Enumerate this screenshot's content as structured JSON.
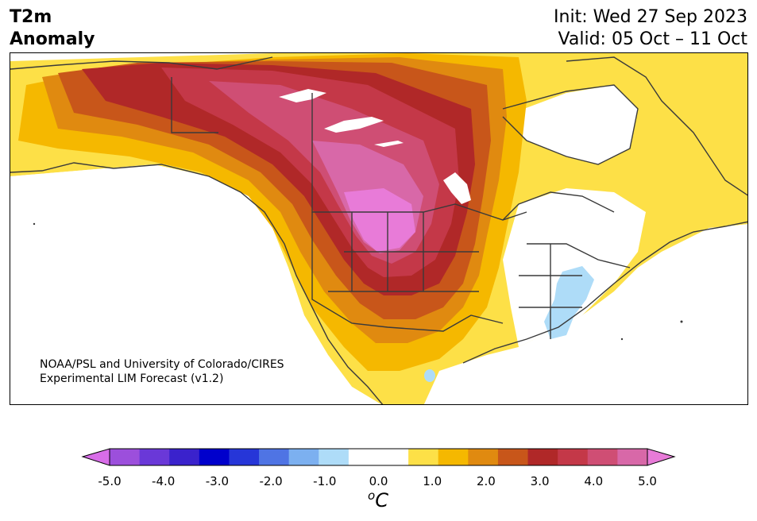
{
  "header": {
    "title_line1": "T2m",
    "title_line2": "Anomaly",
    "init": "Init: Wed 27 Sep 2023",
    "valid": "Valid: 05 Oct – 11 Oct"
  },
  "map": {
    "region": "North America",
    "credit_line1": "NOAA/PSL and University of Colorado/CIRES",
    "credit_line2": "Experimental LIM Forecast (v1.2)"
  },
  "colorbar": {
    "unit": "oC",
    "ticks": [
      "-5.0",
      "-4.0",
      "-3.0",
      "-2.0",
      "-1.0",
      "0.0",
      "1.0",
      "2.0",
      "3.0",
      "4.0",
      "5.0"
    ],
    "colors": [
      "#d86de8",
      "#9c4fdc",
      "#6a38d8",
      "#3a22cc",
      "#0000cc",
      "#2636d8",
      "#4f74e4",
      "#7cb0f0",
      "#aedcf8",
      "#ffffff",
      "#ffffff",
      "#fde047",
      "#f5b800",
      "#e08a10",
      "#c8561a",
      "#b02828",
      "#c43848",
      "#cf4e74",
      "#d868a8",
      "#e87bd8"
    ]
  }
}
